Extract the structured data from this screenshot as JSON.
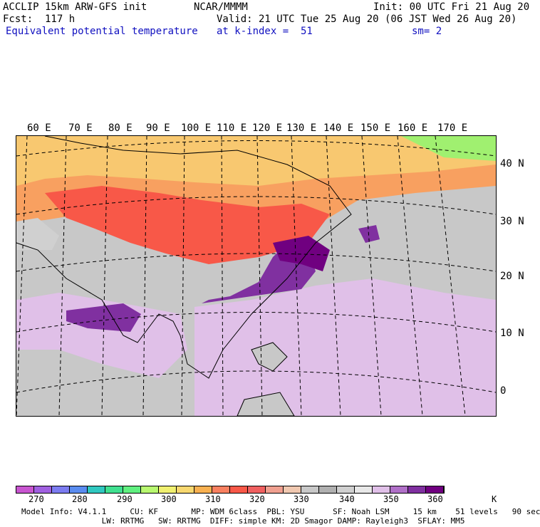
{
  "header": {
    "model": "ACCLIP 15km ARW-GFS init",
    "org": "NCAR/MMMM",
    "init": "Init: 00 UTC Fri 21 Aug 20",
    "fcst": "Fcst:  117 h",
    "valid": "Valid: 21 UTC Tue 25 Aug 20 (06 JST Wed 26 Aug 20)",
    "field": "Equivalent potential temperature",
    "level": "at k-index =  51",
    "smooth": "sm= 2"
  },
  "map": {
    "lon_labels": [
      "60 E",
      "70 E",
      "80 E",
      "90 E",
      "100 E",
      "110 E",
      "120 E",
      "130 E",
      "140 E",
      "150 E",
      "160 E",
      "170 E"
    ],
    "lat_labels": [
      "40 N",
      "30 N",
      "20 N",
      "10 N",
      "0"
    ]
  },
  "colorbar": {
    "colors": [
      "#c855d0",
      "#a060e0",
      "#7c7cf0",
      "#5a8cf0",
      "#30c8c0",
      "#40e090",
      "#60f080",
      "#b8f870",
      "#f0f070",
      "#f8d870",
      "#f8b050",
      "#f88060",
      "#f85848",
      "#f06060",
      "#f0a090",
      "#f0c8b0",
      "#c8c8c8",
      "#b0b0b0",
      "#d0d0d0",
      "#e8e8e8",
      "#e0c0e8",
      "#b070c8",
      "#8030a0",
      "#700080"
    ],
    "tick_labels": [
      "270",
      "280",
      "290",
      "300",
      "310",
      "320",
      "330",
      "340",
      "350",
      "360"
    ],
    "unit": "K"
  },
  "footer": {
    "line1": "Model Info: V4.1.1     CU: KF       MP: WDM 6class  PBL: YSU      SF: Noah LSM     15 km    51 levels   90 sec",
    "line2": "                 LW: RRTMG   SW: RRTMG  DIFF: simple KM: 2D Smagor DAMP: Rayleigh3  SFLAY: MM5"
  }
}
